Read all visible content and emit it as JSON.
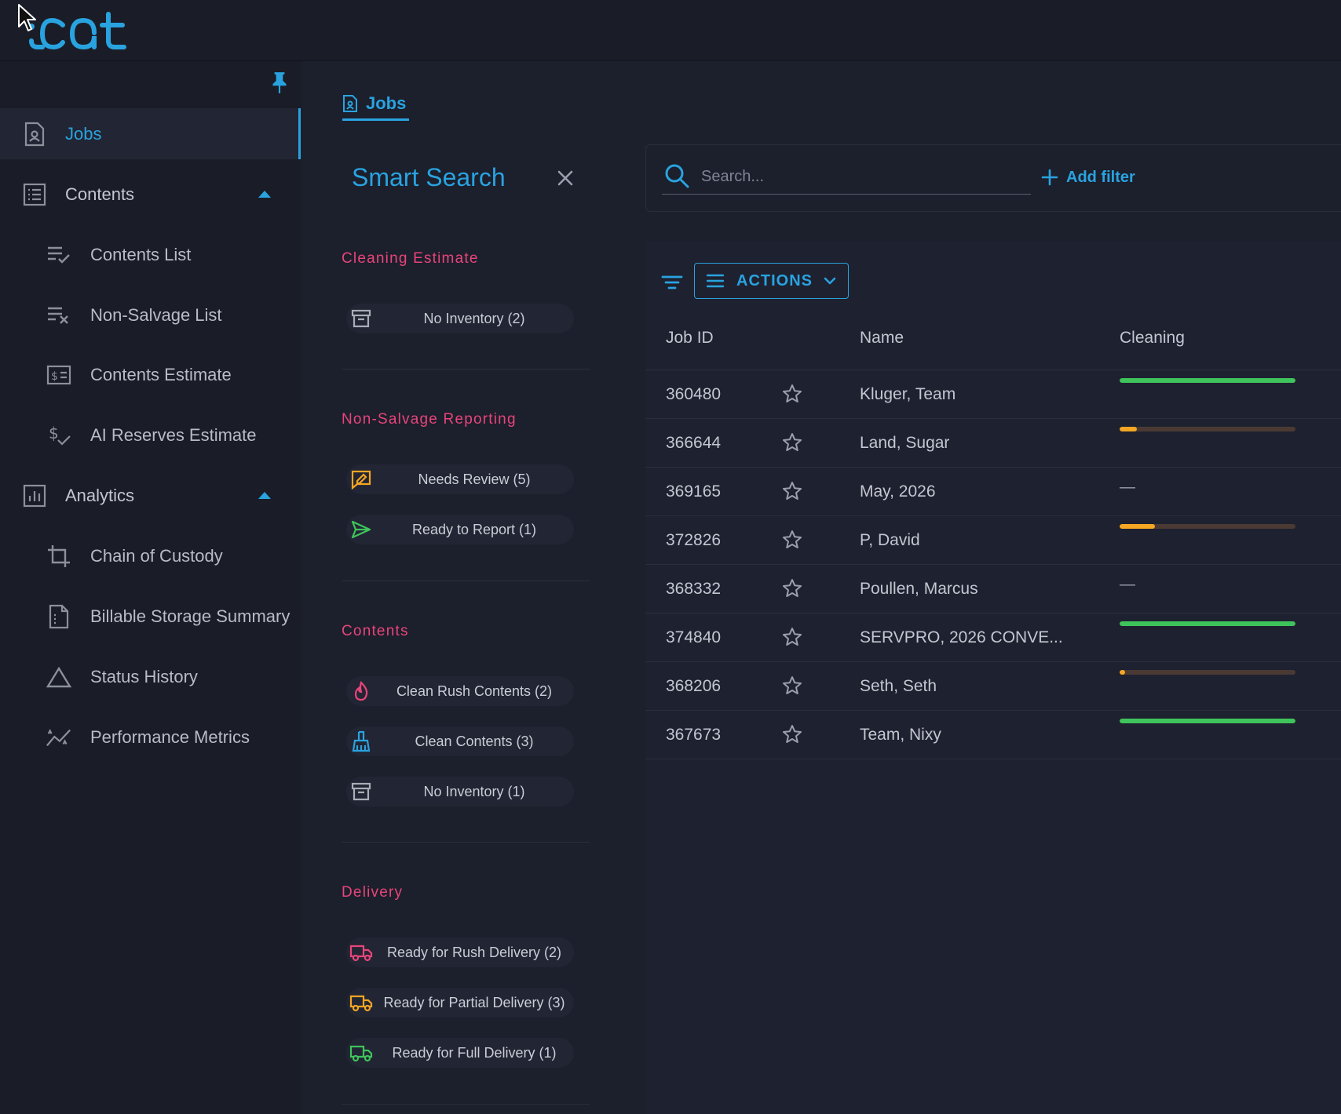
{
  "app": {
    "logo_text": "iCat"
  },
  "sidebar": {
    "items": [
      {
        "label": "Jobs",
        "icon": "job-file-icon",
        "active": true
      },
      {
        "label": "Contents",
        "icon": "list-box-icon",
        "expanded": true
      },
      {
        "label": "Contents List",
        "icon": "list-check-icon"
      },
      {
        "label": "Non-Salvage List",
        "icon": "list-x-icon"
      },
      {
        "label": "Contents Estimate",
        "icon": "money-card-icon"
      },
      {
        "label": "AI Reserves Estimate",
        "icon": "dollar-check-icon"
      },
      {
        "label": "Analytics",
        "icon": "bar-chart-icon",
        "expanded": true
      },
      {
        "label": "Chain of Custody",
        "icon": "crop-icon"
      },
      {
        "label": "Billable Storage Summary",
        "icon": "document-icon"
      },
      {
        "label": "Status History",
        "icon": "triangle-icon"
      },
      {
        "label": "Performance Metrics",
        "icon": "trend-icon"
      }
    ]
  },
  "breadcrumb": {
    "label": "Jobs"
  },
  "smart_search": {
    "title": "Smart Search",
    "sections": [
      {
        "title": "Cleaning Estimate",
        "chips": [
          {
            "label": "No Inventory (2)",
            "icon": "archive-icon"
          }
        ]
      },
      {
        "title": "Non-Salvage Reporting",
        "chips": [
          {
            "label": "Needs Review (5)",
            "icon": "review-icon"
          },
          {
            "label": "Ready to Report (1)",
            "icon": "send-icon"
          }
        ]
      },
      {
        "title": "Contents",
        "chips": [
          {
            "label": "Clean Rush Contents (2)",
            "icon": "fire-icon"
          },
          {
            "label": "Clean Contents (3)",
            "icon": "broom-icon"
          },
          {
            "label": "No Inventory (1)",
            "icon": "archive-icon"
          }
        ]
      },
      {
        "title": "Delivery",
        "chips": [
          {
            "label": "Ready for Rush Delivery (2)",
            "icon": "truck-red-icon"
          },
          {
            "label": "Ready for Partial Delivery (3)",
            "icon": "truck-orange-icon"
          },
          {
            "label": "Ready for Full Delivery (1)",
            "icon": "truck-green-icon"
          }
        ]
      }
    ]
  },
  "search": {
    "placeholder": "Search...",
    "value": "",
    "add_filter_label": "Add filter"
  },
  "toolbar": {
    "actions_label": "ACTIONS"
  },
  "table": {
    "columns": [
      "Job ID",
      "Name",
      "Cleaning"
    ],
    "rows": [
      {
        "job_id": "360480",
        "name": "Kluger, Team",
        "cleaning": 1.0,
        "color": "#3ec45b"
      },
      {
        "job_id": "366644",
        "name": "Land, Sugar",
        "cleaning": 0.1,
        "color": "#f5a623"
      },
      {
        "job_id": "369165",
        "name": "May, 2026",
        "cleaning": null,
        "dash": "—"
      },
      {
        "job_id": "372826",
        "name": "P, David",
        "cleaning": 0.2,
        "color": "#f5a623"
      },
      {
        "job_id": "368332",
        "name": "Poullen, Marcus",
        "cleaning": null,
        "dash": "—"
      },
      {
        "job_id": "374840",
        "name": "SERVPRO, 2026 CONVE...",
        "cleaning": 1.0,
        "color": "#3ec45b"
      },
      {
        "job_id": "368206",
        "name": "Seth, Seth",
        "cleaning": 0.03,
        "color": "#f5a623"
      },
      {
        "job_id": "367673",
        "name": "Team, Nixy",
        "cleaning": 1.0,
        "color": "#3ec45b"
      }
    ]
  },
  "colors": {
    "accent": "#29a3e0",
    "section": "#e8457a",
    "success": "#3ec45b",
    "warning": "#f5a623"
  }
}
